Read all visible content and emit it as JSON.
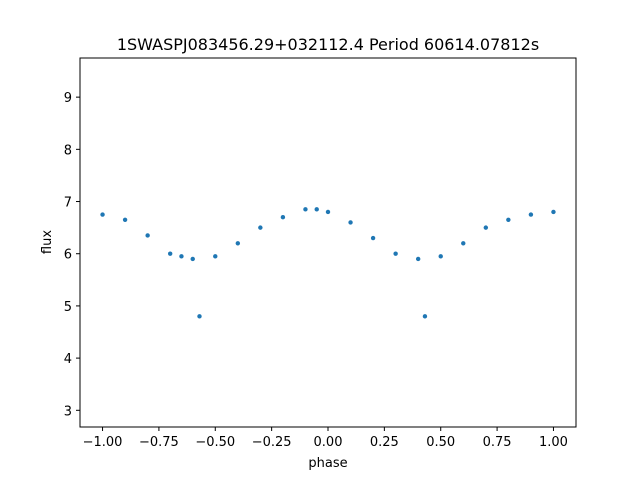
{
  "chart_data": {
    "type": "scatter",
    "title": "1SWASPJ083456.29+032112.4 Period 60614.07812s",
    "xlabel": "phase",
    "ylabel": "flux",
    "xlim": [
      -1.1,
      1.1
    ],
    "ylim": [
      2.68,
      9.75
    ],
    "x_ticks": [
      -1.0,
      -0.75,
      -0.5,
      -0.25,
      0.0,
      0.25,
      0.5,
      0.75,
      1.0
    ],
    "x_tick_labels": [
      "−1.00",
      "−0.75",
      "−0.50",
      "−0.25",
      "0.00",
      "0.25",
      "0.50",
      "0.75",
      "1.00"
    ],
    "y_ticks": [
      3,
      4,
      5,
      6,
      7,
      8,
      9
    ],
    "y_tick_labels": [
      "3",
      "4",
      "5",
      "6",
      "7",
      "8",
      "9"
    ],
    "grid": false,
    "marker_color": "#1f77b4",
    "series": [
      {
        "trend_points": [
          {
            "x": -1.0,
            "y": 6.75
          },
          {
            "x": -0.9,
            "y": 6.65
          },
          {
            "x": -0.8,
            "y": 6.35
          },
          {
            "x": -0.7,
            "y": 6.0
          },
          {
            "x": -0.65,
            "y": 5.95
          },
          {
            "x": -0.6,
            "y": 5.9
          },
          {
            "x": -0.57,
            "y": 4.8
          },
          {
            "x": -0.5,
            "y": 5.95
          },
          {
            "x": -0.4,
            "y": 6.2
          },
          {
            "x": -0.3,
            "y": 6.5
          },
          {
            "x": -0.2,
            "y": 6.7
          },
          {
            "x": -0.1,
            "y": 6.85
          },
          {
            "x": -0.05,
            "y": 6.85
          },
          {
            "x": 0.0,
            "y": 6.8
          },
          {
            "x": 0.1,
            "y": 6.6
          },
          {
            "x": 0.2,
            "y": 6.3
          },
          {
            "x": 0.3,
            "y": 6.0
          },
          {
            "x": 0.4,
            "y": 5.9
          },
          {
            "x": 0.43,
            "y": 4.8
          },
          {
            "x": 0.5,
            "y": 5.95
          },
          {
            "x": 0.6,
            "y": 6.2
          },
          {
            "x": 0.7,
            "y": 6.5
          },
          {
            "x": 0.8,
            "y": 6.65
          },
          {
            "x": 0.9,
            "y": 6.75
          },
          {
            "x": 1.0,
            "y": 6.8
          }
        ]
      }
    ]
  }
}
